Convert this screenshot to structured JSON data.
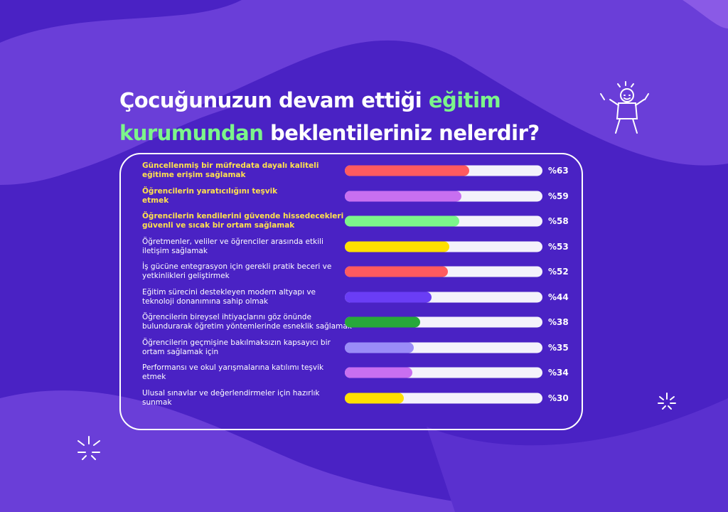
{
  "chart_data": {
    "type": "bar",
    "title_parts": [
      "Çocuğunuzun devam ettiği",
      "eğitim",
      "kurumundan",
      "beklentileriniz nelerdir?"
    ],
    "title_part_colors": [
      "#ffffff",
      "#7cf58a",
      "#7cf58a",
      "#ffffff"
    ],
    "categories": [
      "Güncellenmiş bir müfredata dayalı kaliteli\neğitime erişim sağlamak",
      "Öğrencilerin yaratıcılığını teşvik\netmek",
      "Öğrencilerin kendilerini güvende hissedecekleri\ngüvenli ve sıcak bir ortam sağlamak",
      "Öğretmenler, veliler ve öğrenciler arasında etkili\niletişim sağlamak",
      "İş gücüne entegrasyon için gerekli pratik beceri ve\nyetkinlikleri geliştirmek",
      "Eğitim sürecini destekleyen modern altyapı ve\nteknoloji donanımına sahip olmak",
      "Öğrencilerin bireysel ihtiyaçlarını göz önünde\nbulundurarak öğretim yöntemlerinde esneklik sağlamak",
      "Öğrencilerin geçmişine bakılmaksızın kapsayıcı bir\nortam sağlamak için",
      "Performansı ve okul yarışmalarına katılımı teşvik\netmek",
      "Ulusal sınavlar ve değerlendirmeler için hazırlık\nsunmak"
    ],
    "values": [
      63,
      59,
      58,
      53,
      52,
      44,
      38,
      35,
      34,
      30
    ],
    "value_labels": [
      "%63",
      "%59",
      "%58",
      "%53",
      "%52",
      "%44",
      "%38",
      "%35",
      "%34",
      "%30"
    ],
    "colors": [
      "#ff5a5f",
      "#c86ff0",
      "#7cf58a",
      "#ffe000",
      "#ff5a5f",
      "#6a3df5",
      "#27a83a",
      "#9a8cf7",
      "#c86ff0",
      "#ffe000"
    ],
    "label_colors": [
      "#ffe14d",
      "#ffe14d",
      "#ffe14d",
      "#ffffff",
      "#ffffff",
      "#ffffff",
      "#ffffff",
      "#ffffff",
      "#ffffff",
      "#ffffff"
    ],
    "xlim": [
      0,
      100
    ]
  }
}
